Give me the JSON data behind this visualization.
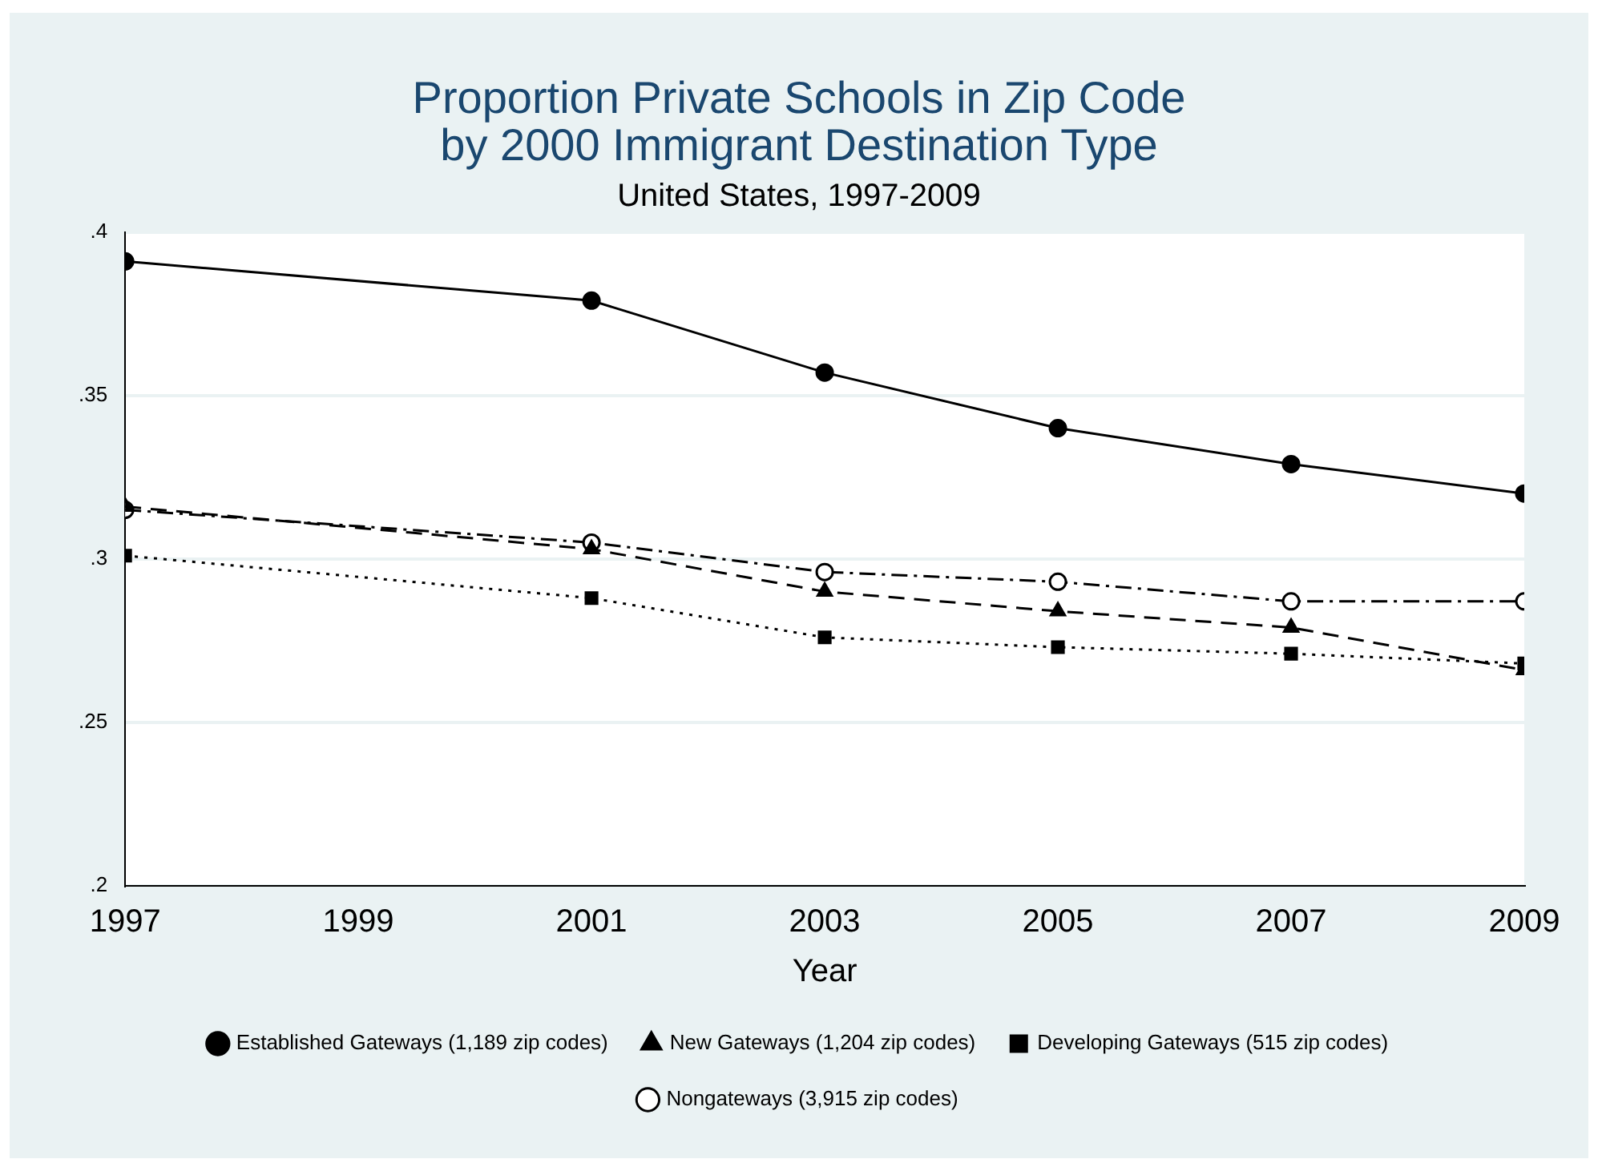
{
  "chart_data": {
    "type": "line",
    "title": "Proportion Private Schools in Zip Code\nby 2000 Immigrant Destination Type",
    "subtitle": "United States, 1997-2009",
    "xlabel": "Year",
    "x": [
      1997,
      2001,
      2003,
      2005,
      2007,
      2009
    ],
    "xlim": [
      1997,
      2009
    ],
    "xticks": [
      1997,
      1999,
      2001,
      2003,
      2005,
      2007,
      2009
    ],
    "ylim": [
      0.2,
      0.4
    ],
    "yticks": [
      {
        "value": 0.2,
        "label": ".2"
      },
      {
        "value": 0.25,
        "label": ".25"
      },
      {
        "value": 0.3,
        "label": ".3"
      },
      {
        "value": 0.35,
        "label": ".35"
      },
      {
        "value": 0.4,
        "label": ".4"
      }
    ],
    "grid": "y",
    "legend": "bottom",
    "series": [
      {
        "name": "Established Gateways (1,189 zip codes)",
        "color": "#000000",
        "marker": "circle",
        "line_style": "solid",
        "values": [
          0.391,
          0.379,
          0.357,
          0.34,
          0.329,
          0.32
        ]
      },
      {
        "name": "New Gateways (1,204 zip codes)",
        "color": "#000000",
        "marker": "triangle",
        "line_style": "dashed",
        "values": [
          0.316,
          0.303,
          0.29,
          0.284,
          0.279,
          0.266
        ]
      },
      {
        "name": "Developing Gateways (515 zip codes)",
        "color": "#000000",
        "marker": "square",
        "line_style": "dotted",
        "values": [
          0.301,
          0.288,
          0.276,
          0.273,
          0.271,
          0.268
        ]
      },
      {
        "name": "Nongateways (3,915 zip codes)",
        "color": "#000000",
        "marker": "open-circle",
        "line_style": "dashdot",
        "values": [
          0.315,
          0.305,
          0.296,
          0.293,
          0.287,
          0.287
        ]
      }
    ]
  }
}
